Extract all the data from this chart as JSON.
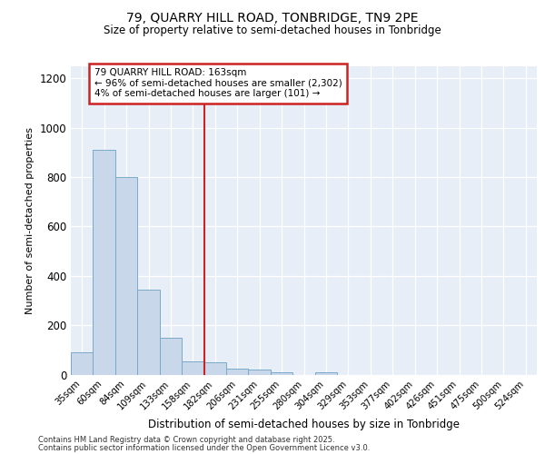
{
  "title1": "79, QUARRY HILL ROAD, TONBRIDGE, TN9 2PE",
  "title2": "Size of property relative to semi-detached houses in Tonbridge",
  "xlabel": "Distribution of semi-detached houses by size in Tonbridge",
  "ylabel": "Number of semi-detached properties",
  "categories": [
    "35sqm",
    "60sqm",
    "84sqm",
    "109sqm",
    "133sqm",
    "158sqm",
    "182sqm",
    "206sqm",
    "231sqm",
    "255sqm",
    "280sqm",
    "304sqm",
    "329sqm",
    "353sqm",
    "377sqm",
    "402sqm",
    "426sqm",
    "451sqm",
    "475sqm",
    "500sqm",
    "524sqm"
  ],
  "values": [
    90,
    910,
    800,
    345,
    150,
    55,
    50,
    25,
    20,
    10,
    0,
    10,
    0,
    0,
    0,
    0,
    0,
    0,
    0,
    0,
    0
  ],
  "bar_color": "#c8d8ea",
  "bar_edge_color": "#7aaac8",
  "red_line_x": 5.5,
  "red_line_color": "#cc2222",
  "annotation_text": "79 QUARRY HILL ROAD: 163sqm\n← 96% of semi-detached houses are smaller (2,302)\n4% of semi-detached houses are larger (101) →",
  "annotation_box_color": "#ffffff",
  "annotation_box_edge": "#cc2222",
  "ylim": [
    0,
    1250
  ],
  "yticks": [
    0,
    200,
    400,
    600,
    800,
    1000,
    1200
  ],
  "background_color": "#e8eef8",
  "footer1": "Contains HM Land Registry data © Crown copyright and database right 2025.",
  "footer2": "Contains public sector information licensed under the Open Government Licence v3.0."
}
